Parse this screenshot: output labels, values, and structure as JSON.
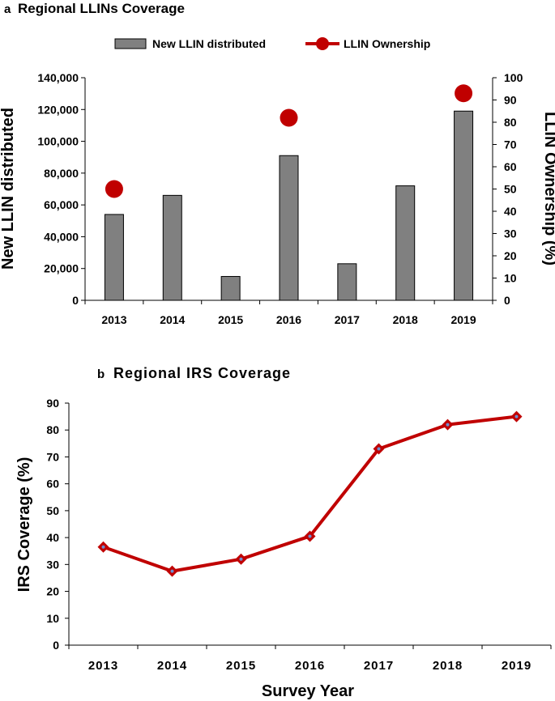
{
  "panels": [
    {
      "letter": "a",
      "title": "Regional LLINs Coverage"
    },
    {
      "letter": "b",
      "title": "Regional IRS Coverage"
    }
  ],
  "chart_data": [
    {
      "type": "bar",
      "title": "Regional LLINs Coverage",
      "categories": [
        "2013",
        "2014",
        "2015",
        "2016",
        "2017",
        "2018",
        "2019"
      ],
      "series": [
        {
          "name": "New LLIN distributed",
          "kind": "bar",
          "axis": "left",
          "values": [
            54000,
            66000,
            15000,
            91000,
            23000,
            72000,
            119000
          ]
        },
        {
          "name": "LLIN Ownership",
          "kind": "marker",
          "axis": "right",
          "values": [
            50,
            null,
            null,
            82,
            null,
            null,
            93
          ]
        }
      ],
      "ylabel": "New LLIN distributed",
      "ylim": [
        0,
        140000
      ],
      "yticks": [
        "0",
        "20,000",
        "40,000",
        "60,000",
        "80,000",
        "100,000",
        "120,000",
        "140,000"
      ],
      "y2label": "LLIN Ownership (%)",
      "y2lim": [
        0,
        100
      ],
      "y2ticks": [
        "0",
        "10",
        "20",
        "30",
        "40",
        "50",
        "60",
        "70",
        "80",
        "90",
        "100"
      ],
      "xlabel": "",
      "legend": "top",
      "grid": false,
      "colors": {
        "bar": "#808080",
        "bar_edge": "#000000",
        "marker": "#c00000"
      }
    },
    {
      "type": "line",
      "title": "Regional IRS Coverage",
      "categories": [
        "2013",
        "2014",
        "2015",
        "2016",
        "2017",
        "2018",
        "2019"
      ],
      "series": [
        {
          "name": "",
          "values": [
            36.5,
            27.5,
            32,
            40.5,
            73,
            82,
            85
          ]
        }
      ],
      "xlabel": "Survey Year",
      "ylabel": "IRS Coverage (%)",
      "ylim": [
        0,
        90
      ],
      "yticks": [
        "0",
        "10",
        "20",
        "30",
        "40",
        "50",
        "60",
        "70",
        "80",
        "90"
      ],
      "grid": false,
      "colors": {
        "line": "#c00000",
        "marker_fill": "#c00000",
        "marker_center": "#6f8fd0"
      }
    }
  ]
}
